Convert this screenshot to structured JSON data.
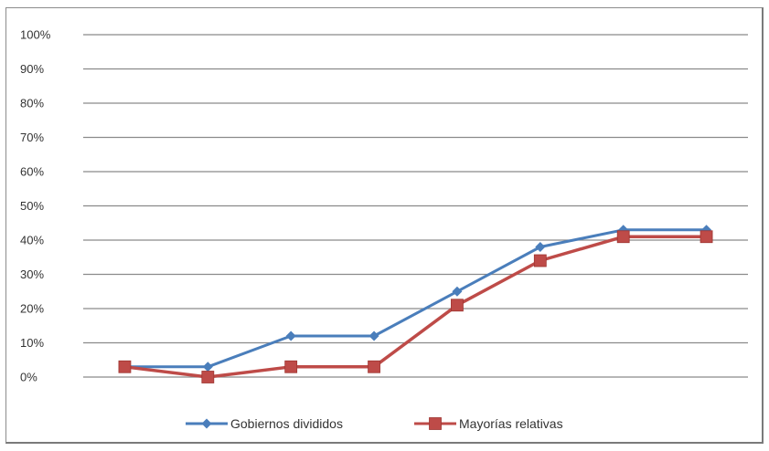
{
  "chart_data": {
    "type": "line",
    "title": "",
    "xlabel": "",
    "ylabel": "",
    "ylim": [
      0,
      100
    ],
    "y_ticks": [
      "0%",
      "10%",
      "20%",
      "30%",
      "40%",
      "50%",
      "60%",
      "70%",
      "80%",
      "90%",
      "100%"
    ],
    "grid": true,
    "legend_position": "bottom",
    "x_count": 8,
    "series": [
      {
        "name": "Gobiernos divididos",
        "color": "#4a7ebb",
        "marker": "diamond",
        "values": [
          3,
          3,
          12,
          12,
          25,
          38,
          43,
          43
        ]
      },
      {
        "name": "Mayorías relativas",
        "color": "#be4b48",
        "marker": "square",
        "values": [
          3,
          0,
          3,
          3,
          21,
          34,
          41,
          41
        ]
      }
    ]
  }
}
